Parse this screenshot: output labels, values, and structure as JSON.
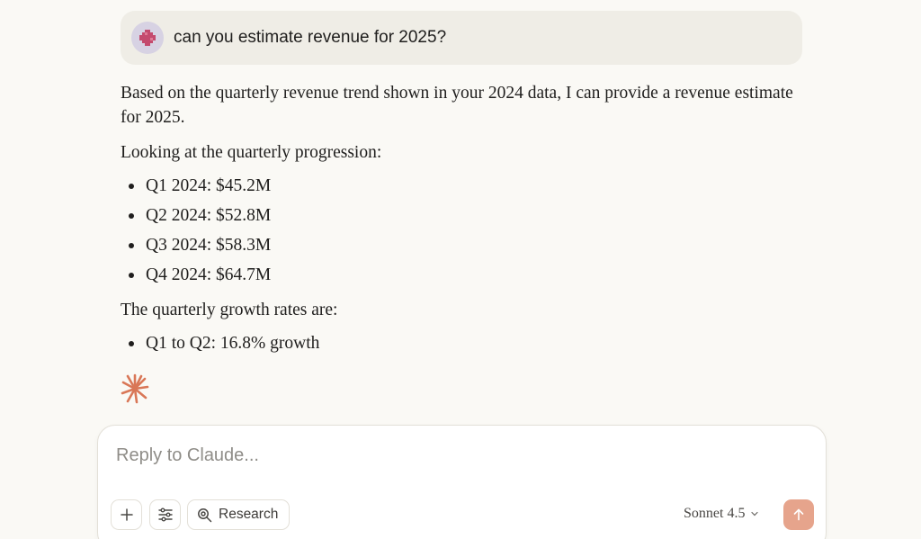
{
  "user_message": {
    "text": "can you estimate revenue for 2025?",
    "avatar_icon": "pixel-cross-avatar-icon"
  },
  "response": {
    "intro": "Based on the quarterly revenue trend shown in your 2024 data, I can provide a revenue estimate for 2025.",
    "progression_heading": "Looking at the quarterly progression:",
    "quarters": [
      "Q1 2024: $45.2M",
      "Q2 2024: $52.8M",
      "Q3 2024: $58.3M",
      "Q4 2024: $64.7M"
    ],
    "growth_heading": "The quarterly growth rates are:",
    "growth_rates": [
      "Q1 to Q2: 16.8% growth"
    ],
    "streaming_icon": "spark-icon"
  },
  "composer": {
    "placeholder": "Reply to Claude...",
    "research_label": "Research",
    "model_label": "Sonnet 4.5",
    "send_icon": "arrow-up-icon"
  },
  "colors": {
    "background": "#faf9f5",
    "bubble": "#efede6",
    "accent": "#d97757",
    "send_button": "#e6a48c",
    "avatar_bg": "#d7d2e3",
    "avatar_fg": "#c44a6e"
  }
}
